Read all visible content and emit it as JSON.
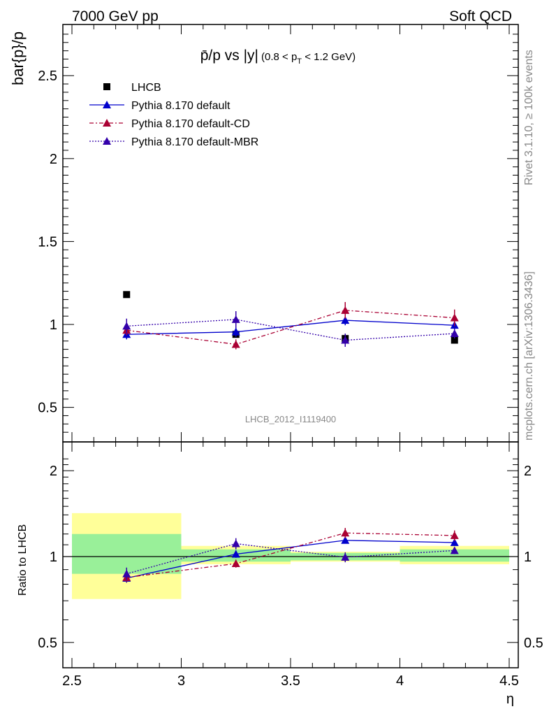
{
  "header": {
    "left": "7000 GeV pp",
    "right": "Soft QCD"
  },
  "side_labels": {
    "rivet": "Rivet 3.1.10, ≥ 100k events",
    "mcplots": "mcplots.cern.ch [arXiv:1306.3436]"
  },
  "colors": {
    "data": "#000000",
    "default": "#0000cc",
    "cd": "#aa0033",
    "mbr": "#3300aa",
    "band_inner": "#99f099",
    "band_outer": "#ffff99"
  },
  "chart_data": [
    {
      "type": "line",
      "panel": "main",
      "title": "p̄/p vs |y|",
      "title_note_prefix": "(0.8 < p",
      "title_note_sub": "T",
      "title_note_suffix": " < 1.2 GeV)",
      "watermark": "LHCB_2012_I1119400",
      "xlabel": "η",
      "ylabel": "bar{p}/p",
      "xlim": [
        2.5,
        4.5
      ],
      "ylim": [
        0.3,
        2.8
      ],
      "x_ticks": [
        "2.5",
        "3",
        "3.5",
        "4",
        "4.5"
      ],
      "y_ticks": [
        "0.5",
        "1",
        "1.5",
        "2",
        "2.5"
      ],
      "x": [
        2.75,
        3.25,
        3.75,
        4.25
      ],
      "series": [
        {
          "name": "LHCB",
          "style": "data",
          "values": [
            1.18,
            0.94,
            0.915,
            0.905
          ],
          "errors": [
            0.005,
            0.005,
            0.005,
            0.005
          ]
        },
        {
          "name": "Pythia 8.170 default",
          "style": "solid",
          "values": [
            0.94,
            0.955,
            1.025,
            0.995
          ],
          "errors": [
            0.03,
            0.03,
            0.03,
            0.025
          ]
        },
        {
          "name": "Pythia 8.170 default-CD",
          "style": "dashdot",
          "values": [
            0.965,
            0.88,
            1.085,
            1.04
          ],
          "errors": [
            0.03,
            0.03,
            0.05,
            0.05
          ]
        },
        {
          "name": "Pythia 8.170 default-MBR",
          "style": "dotted",
          "values": [
            0.99,
            1.03,
            0.905,
            0.945
          ],
          "errors": [
            0.045,
            0.05,
            0.04,
            0.03
          ]
        }
      ]
    },
    {
      "type": "line",
      "panel": "ratio",
      "ylabel": "Ratio to LHCB",
      "xlim": [
        2.5,
        4.5
      ],
      "ylim": [
        0.4,
        2.3
      ],
      "y_ticks": [
        "0.5",
        "1",
        "2"
      ],
      "bins": [
        [
          2.5,
          3.0
        ],
        [
          3.0,
          3.5
        ],
        [
          3.5,
          4.0
        ],
        [
          4.0,
          4.5
        ]
      ],
      "band_inner": [
        [
          0.87,
          1.2
        ],
        [
          0.96,
          1.06
        ],
        [
          0.97,
          1.03
        ],
        [
          0.96,
          1.06
        ]
      ],
      "band_outer": [
        [
          0.71,
          1.42
        ],
        [
          0.94,
          1.09
        ],
        [
          0.96,
          1.04
        ],
        [
          0.94,
          1.09
        ]
      ],
      "x": [
        2.75,
        3.25,
        3.75,
        4.25
      ],
      "series": [
        {
          "name": "Pythia 8.170 default",
          "style": "solid",
          "values": [
            0.84,
            1.02,
            1.14,
            1.12
          ],
          "errors": [
            0.03,
            0.03,
            0.03,
            0.025
          ]
        },
        {
          "name": "Pythia 8.170 default-CD",
          "style": "dashdot",
          "values": [
            0.845,
            0.945,
            1.21,
            1.185
          ],
          "errors": [
            0.03,
            0.03,
            0.05,
            0.05
          ]
        },
        {
          "name": "Pythia 8.170 default-MBR",
          "style": "dotted",
          "values": [
            0.87,
            1.11,
            0.995,
            1.05
          ],
          "errors": [
            0.045,
            0.05,
            0.04,
            0.03
          ]
        }
      ]
    }
  ]
}
